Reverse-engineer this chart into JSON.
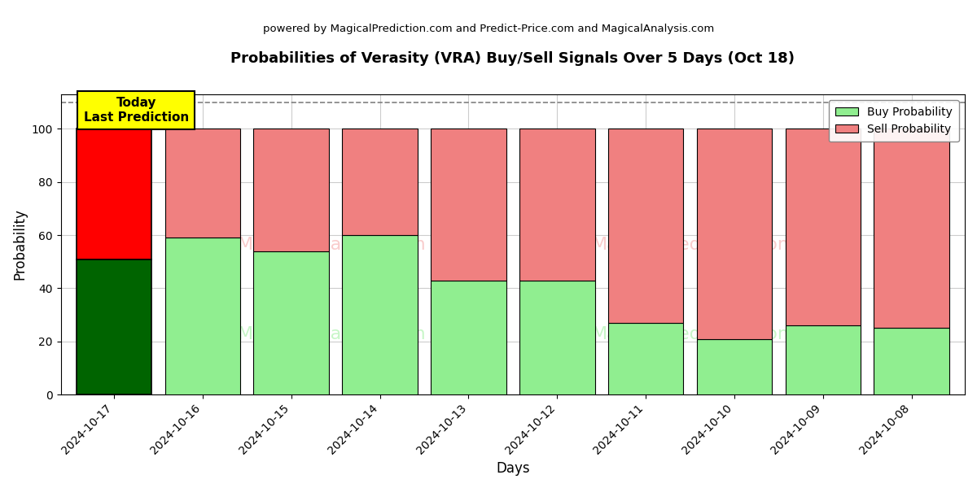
{
  "title": "Probabilities of Verasity (VRA) Buy/Sell Signals Over 5 Days (Oct 18)",
  "subtitle": "powered by MagicalPrediction.com and Predict-Price.com and MagicalAnalysis.com",
  "xlabel": "Days",
  "ylabel": "Probability",
  "dates": [
    "2024-10-17",
    "2024-10-16",
    "2024-10-15",
    "2024-10-14",
    "2024-10-13",
    "2024-10-12",
    "2024-10-11",
    "2024-10-10",
    "2024-10-09",
    "2024-10-08"
  ],
  "buy_values": [
    51,
    59,
    54,
    60,
    43,
    43,
    27,
    21,
    26,
    25
  ],
  "sell_values": [
    49,
    41,
    46,
    40,
    57,
    57,
    73,
    79,
    74,
    75
  ],
  "today_buy_color": "#006400",
  "today_sell_color": "#ff0000",
  "buy_color": "#90EE90",
  "sell_color": "#F08080",
  "today_label": "Today\nLast Prediction",
  "today_label_bg": "#ffff00",
  "legend_buy": "Buy Probability",
  "legend_sell": "Sell Probability",
  "ylim": [
    0,
    113
  ],
  "dashed_line_y": 110,
  "watermark1": "MagicalAnalysis.com",
  "watermark2": "MagicalPrediction.com",
  "bar_width": 0.85,
  "background_color": "#ffffff",
  "grid_color": "#cccccc"
}
